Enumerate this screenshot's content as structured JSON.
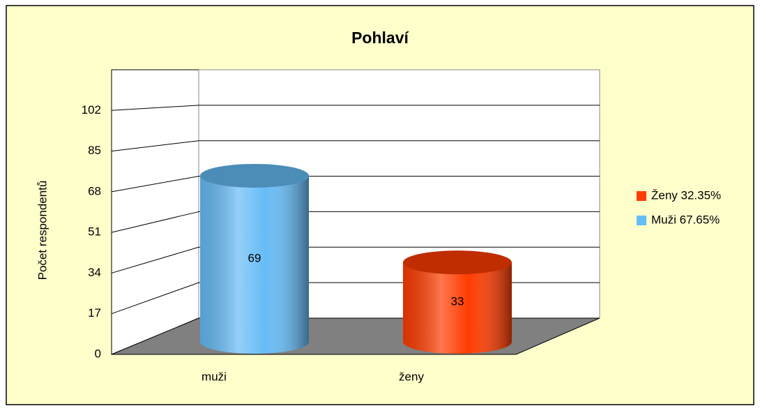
{
  "chart_data": {
    "type": "bar3d",
    "title": "Pohlaví",
    "y_label": "Počet respondentů",
    "categories": [
      "muži",
      "ženy"
    ],
    "values": [
      69,
      33
    ],
    "colors": [
      "#66bcf6",
      "#ff3c00"
    ],
    "ylim": [
      0,
      119
    ],
    "yticks": [
      0,
      17,
      34,
      51,
      68,
      85,
      102
    ],
    "grid": true,
    "legend_position": "right",
    "legend": [
      {
        "label": "Ženy 32.35%",
        "color": "#ff3c00"
      },
      {
        "label": "Muži 67.65%",
        "color": "#66bcf6"
      }
    ]
  }
}
